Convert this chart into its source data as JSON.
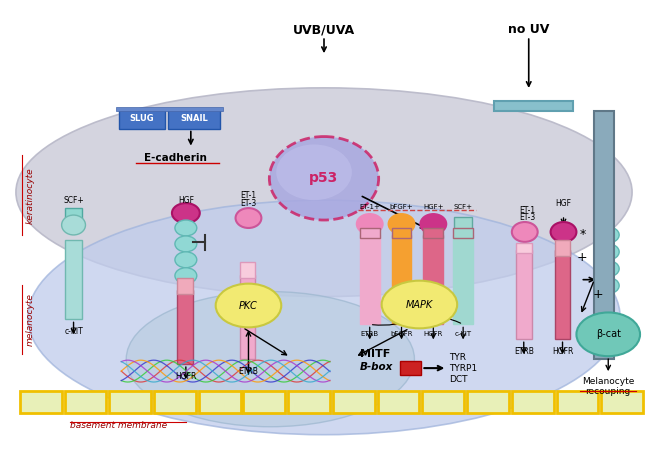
{
  "bg_color": "#ffffff",
  "uvb_text": "UVB/UVA",
  "nouv_text": "no UV",
  "kera_text": "keratinocyte",
  "mela_text": "melanocyte",
  "bm_text": "basement membrane"
}
